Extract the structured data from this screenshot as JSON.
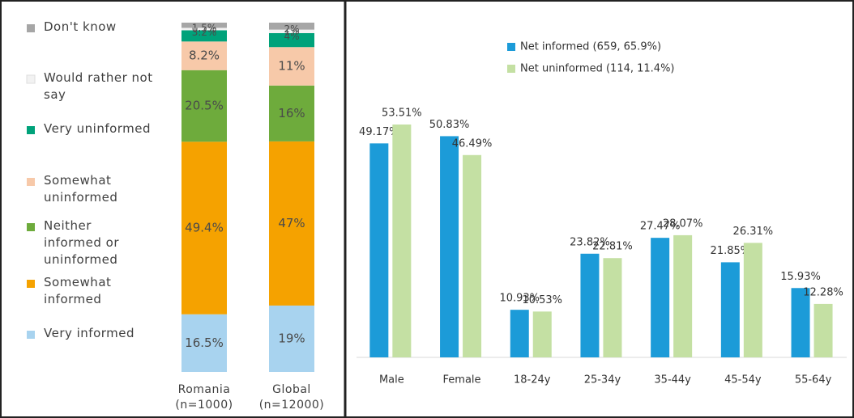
{
  "chart_data": [
    {
      "type": "stacked_bar",
      "categories": [
        "Romania (n=1000)",
        "Global (n=12000)"
      ],
      "series": [
        {
          "name": "Very informed",
          "color": "#a8d3ef",
          "values": [
            16.5,
            19
          ],
          "value_labels": [
            "16.5%",
            "19%"
          ]
        },
        {
          "name": "Somewhat informed",
          "color": "#f5a200",
          "values": [
            49.4,
            47
          ],
          "value_labels": [
            "49.4%",
            "47%"
          ]
        },
        {
          "name": "Neither informed or uninformed",
          "color": "#6eab3c",
          "values": [
            20.5,
            16
          ],
          "value_labels": [
            "20.5%",
            "16%"
          ]
        },
        {
          "name": "Somewhat uninformed",
          "color": "#f7c9a9",
          "values": [
            8.2,
            11
          ],
          "value_labels": [
            "8.2%",
            "11%"
          ]
        },
        {
          "name": "Very uninformed",
          "color": "#00a27a",
          "values": [
            3.2,
            4
          ],
          "value_labels": [
            "3.2%",
            "4%"
          ]
        },
        {
          "name": "Would rather not say",
          "color": "#f2f2f2",
          "values": [
            0.7,
            1
          ],
          "value_labels": [
            "0.7%",
            "1%"
          ]
        },
        {
          "name": "Don't know",
          "color": "#a6a6a6",
          "values": [
            1.5,
            2
          ],
          "value_labels": [
            "1.5%",
            "2%"
          ]
        }
      ]
    },
    {
      "type": "bar",
      "categories": [
        "Male",
        "Female",
        "18-24y",
        "25-34y",
        "35-44y",
        "45-54y",
        "55-64y"
      ],
      "series": [
        {
          "name": "Net informed (659, 65.9%)",
          "color": "#1c9bd8",
          "values": [
            49.17,
            50.83,
            10.93,
            23.82,
            27.47,
            21.85,
            15.93
          ],
          "value_labels": [
            "49.17%",
            "50.83%",
            "10.93%",
            "23.82%",
            "27.47%",
            "21.85%",
            "15.93%"
          ]
        },
        {
          "name": "Net uninformed (114, 11.4%)",
          "color": "#c4e0a3",
          "values": [
            53.51,
            46.49,
            10.53,
            22.81,
            28.07,
            26.31,
            12.28
          ],
          "value_labels": [
            "53.51%",
            "46.49%",
            "10.53%",
            "22.81%",
            "28.07%",
            "26.31%",
            "12.28%"
          ]
        }
      ]
    }
  ]
}
